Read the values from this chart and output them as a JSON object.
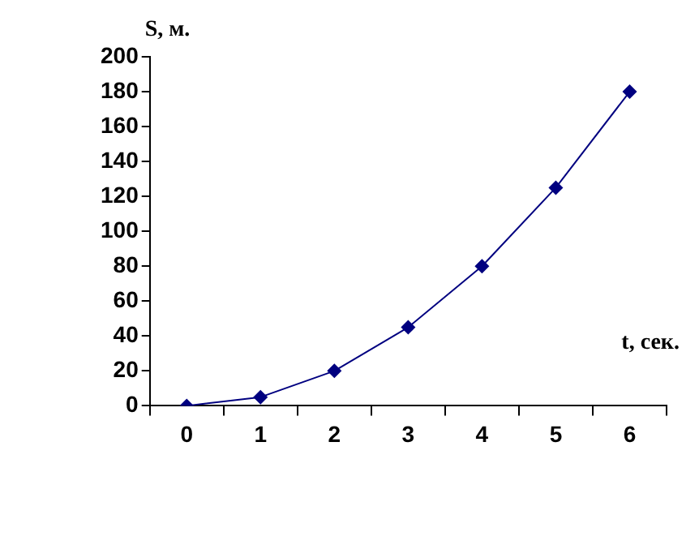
{
  "chart_data": {
    "type": "line",
    "xlabel": "t, сек.",
    "ylabel": "S, м.",
    "categories": [
      "0",
      "1",
      "2",
      "3",
      "4",
      "5",
      "6"
    ],
    "series": [
      {
        "color": "#000080",
        "values": [
          0,
          5,
          20,
          45,
          80,
          125,
          180
        ]
      }
    ],
    "ylim": [
      0,
      200
    ],
    "yticks": [
      0,
      20,
      40,
      60,
      80,
      100,
      120,
      140,
      160,
      180,
      200
    ],
    "grid": false,
    "legend": false,
    "marker": "diamond",
    "line_style": "solid"
  }
}
